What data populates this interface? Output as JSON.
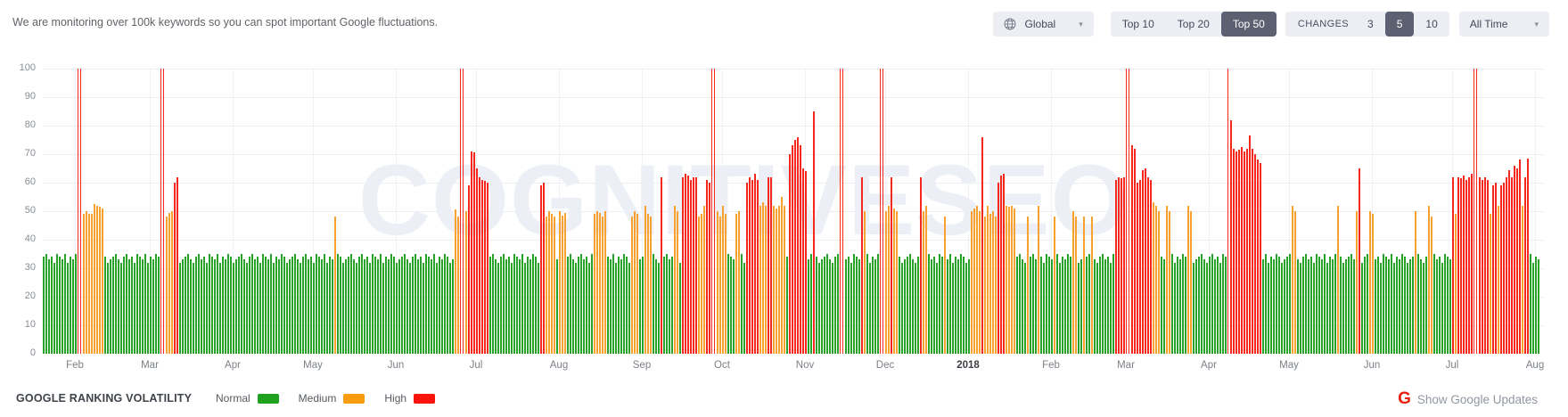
{
  "header": {
    "message": "We are monitoring over 100k keywords so you can spot important Google fluctuations.",
    "region_selector": {
      "icon": "globe-icon",
      "value": "Global"
    },
    "top_filter": {
      "options": [
        "Top 10",
        "Top 20",
        "Top 50"
      ],
      "selected": "Top 50"
    },
    "changes_filter": {
      "label": "CHANGES",
      "options": [
        "3",
        "5",
        "10"
      ],
      "selected": "5"
    },
    "time_selector": {
      "value": "All Time"
    }
  },
  "chart_data": {
    "type": "bar",
    "watermark": "COGNITIVESEO",
    "ylim": [
      0,
      100
    ],
    "yticks": [
      0,
      10,
      20,
      30,
      40,
      50,
      60,
      70,
      80,
      90,
      100
    ],
    "grid": true,
    "legend_position": "bottom",
    "x_axis_months": [
      {
        "label": "Feb",
        "day": 12
      },
      {
        "label": "Mar",
        "day": 40
      },
      {
        "label": "Apr",
        "day": 71
      },
      {
        "label": "May",
        "day": 101
      },
      {
        "label": "Jun",
        "day": 132
      },
      {
        "label": "Jul",
        "day": 162
      },
      {
        "label": "Aug",
        "day": 193
      },
      {
        "label": "Sep",
        "day": 224
      },
      {
        "label": "Oct",
        "day": 254
      },
      {
        "label": "Nov",
        "day": 285
      },
      {
        "label": "Dec",
        "day": 315
      },
      {
        "label": "2018",
        "day": 346,
        "bold": true
      },
      {
        "label": "Feb",
        "day": 377
      },
      {
        "label": "Mar",
        "day": 405
      },
      {
        "label": "Apr",
        "day": 436
      },
      {
        "label": "May",
        "day": 466
      },
      {
        "label": "Jun",
        "day": 497
      },
      {
        "label": "Jul",
        "day": 527
      },
      {
        "label": "Aug",
        "day": 558
      }
    ],
    "colors": {
      "normal": "#28a228",
      "medium": "#f9a12f",
      "high": "#f6281e",
      "spike": "#f6281e"
    },
    "green_base": 33,
    "green_jitter": [
      1,
      2,
      0,
      1,
      -1,
      2,
      1,
      0,
      2,
      -1,
      1,
      0,
      2,
      1,
      -1,
      0,
      1,
      2,
      0,
      -1
    ],
    "segments": [
      [
        "g",
        13
      ],
      [
        "s",
        2
      ],
      [
        "o",
        [
          49,
          50,
          49,
          49,
          52.5,
          52,
          51.5,
          51
        ]
      ],
      [
        "g",
        21
      ],
      [
        "s",
        2
      ],
      [
        "o",
        [
          48,
          49.5,
          50
        ]
      ],
      [
        "r",
        [
          60,
          62
        ]
      ],
      [
        "g",
        58
      ],
      [
        "o",
        [
          48
        ]
      ],
      [
        "g",
        44
      ],
      [
        "o",
        [
          50.5,
          48
        ]
      ],
      [
        "s",
        2
      ],
      [
        "o",
        [
          50
        ]
      ],
      [
        "r",
        [
          59,
          71,
          70.5,
          65,
          62,
          61,
          60.5,
          60
        ]
      ],
      [
        "g",
        19
      ],
      [
        "r",
        [
          59,
          60
        ]
      ],
      [
        "o",
        [
          48,
          50,
          49,
          48
        ]
      ],
      [
        "g",
        1
      ],
      [
        "o",
        [
          50,
          48.5,
          49.5
        ]
      ],
      [
        "g",
        10
      ],
      [
        "o",
        [
          49,
          50,
          49.5,
          48,
          50
        ]
      ],
      [
        "g",
        9
      ],
      [
        "o",
        [
          48,
          50,
          49
        ]
      ],
      [
        "g",
        2
      ],
      [
        "o",
        [
          52,
          49,
          48
        ]
      ],
      [
        "g",
        3
      ],
      [
        "r",
        [
          62
        ]
      ],
      [
        "g",
        4
      ],
      [
        "o",
        [
          52,
          50
        ]
      ],
      [
        "g",
        1
      ],
      [
        "r",
        [
          62,
          63,
          62.5,
          61,
          62,
          62
        ]
      ],
      [
        "o",
        [
          48,
          49
        ]
      ],
      [
        "o",
        [
          52
        ]
      ],
      [
        "r",
        [
          61,
          60
        ]
      ],
      [
        "s",
        2
      ],
      [
        "o",
        [
          50,
          48,
          52,
          49
        ]
      ],
      [
        "g",
        3
      ],
      [
        "o",
        [
          49,
          50
        ]
      ],
      [
        "g",
        2
      ],
      [
        "r",
        [
          60,
          62,
          61,
          63,
          61
        ]
      ],
      [
        "o",
        [
          52,
          53,
          52
        ]
      ],
      [
        "r",
        [
          62,
          62
        ]
      ],
      [
        "o",
        [
          52,
          51,
          52,
          55,
          52
        ]
      ],
      [
        "g",
        1
      ],
      [
        "r",
        [
          70,
          73,
          75,
          76,
          73,
          65,
          64
        ]
      ],
      [
        "g",
        2
      ],
      [
        "r",
        [
          85
        ]
      ],
      [
        "g",
        9
      ],
      [
        "s",
        2
      ],
      [
        "g",
        6
      ],
      [
        "r",
        [
          62
        ]
      ],
      [
        "o",
        [
          50
        ]
      ],
      [
        "g",
        5
      ],
      [
        "s",
        2
      ],
      [
        "o",
        [
          50,
          52
        ]
      ],
      [
        "r",
        [
          62
        ]
      ],
      [
        "o",
        [
          51,
          50
        ]
      ],
      [
        "g",
        8
      ],
      [
        "r",
        [
          62
        ]
      ],
      [
        "o",
        [
          50,
          52
        ]
      ],
      [
        "g",
        6
      ],
      [
        "o",
        [
          48
        ]
      ],
      [
        "g",
        9
      ],
      [
        "o",
        [
          50,
          51,
          52,
          50
        ]
      ],
      [
        "r",
        [
          76
        ]
      ],
      [
        "o",
        [
          48,
          52,
          49,
          50,
          48
        ]
      ],
      [
        "r",
        [
          60,
          62.5,
          63
        ]
      ],
      [
        "o",
        [
          52,
          51.5,
          52,
          51
        ]
      ],
      [
        "g",
        4
      ],
      [
        "o",
        [
          48
        ]
      ],
      [
        "g",
        3
      ],
      [
        "o",
        [
          52
        ]
      ],
      [
        "g",
        5
      ],
      [
        "o",
        [
          48
        ]
      ],
      [
        "g",
        6
      ],
      [
        "o",
        [
          50,
          48
        ]
      ],
      [
        "g",
        2
      ],
      [
        "o",
        [
          48
        ]
      ],
      [
        "g",
        2
      ],
      [
        "o",
        [
          48
        ]
      ],
      [
        "g",
        8
      ],
      [
        "r",
        [
          61,
          62,
          61.5,
          62
        ]
      ],
      [
        "s",
        2
      ],
      [
        "r",
        [
          73,
          72
        ]
      ],
      [
        "r",
        [
          60,
          61,
          64.5,
          65
        ]
      ],
      [
        "r",
        [
          62,
          61
        ]
      ],
      [
        "o",
        [
          53,
          52,
          50
        ]
      ],
      [
        "g",
        2
      ],
      [
        "o",
        [
          52,
          50
        ]
      ],
      [
        "g",
        6
      ],
      [
        "o",
        [
          52,
          50
        ]
      ],
      [
        "g",
        13
      ],
      [
        "s",
        1
      ],
      [
        "r",
        [
          82
        ]
      ],
      [
        "r",
        [
          72,
          71,
          71.5,
          72.5,
          71,
          72,
          76.5,
          72,
          70,
          68,
          67
        ]
      ],
      [
        "g",
        11
      ],
      [
        "o",
        [
          52,
          50
        ]
      ],
      [
        "g",
        15
      ],
      [
        "o",
        [
          52
        ]
      ],
      [
        "g",
        6
      ],
      [
        "o",
        [
          50
        ]
      ],
      [
        "r",
        [
          65
        ]
      ],
      [
        "g",
        3
      ],
      [
        "o",
        [
          50,
          49
        ]
      ],
      [
        "g",
        15
      ],
      [
        "o",
        [
          50
        ]
      ],
      [
        "g",
        4
      ],
      [
        "o",
        [
          52,
          48
        ]
      ],
      [
        "g",
        7
      ],
      [
        "r",
        [
          62
        ]
      ],
      [
        "o",
        [
          49
        ]
      ],
      [
        "r",
        [
          62,
          61.5,
          62.5,
          61,
          62,
          63
        ]
      ],
      [
        "s",
        2
      ],
      [
        "r",
        [
          62,
          61,
          62
        ]
      ],
      [
        "r",
        [
          61
        ]
      ],
      [
        "o",
        [
          49
        ]
      ],
      [
        "r",
        [
          59,
          60
        ]
      ],
      [
        "o",
        [
          52
        ]
      ],
      [
        "r",
        [
          59,
          60,
          62,
          64.5
        ]
      ],
      [
        "r",
        [
          62,
          66,
          65
        ]
      ],
      [
        "r",
        [
          68
        ]
      ],
      [
        "o",
        [
          52
        ]
      ],
      [
        "r",
        [
          62,
          68.5
        ]
      ],
      [
        "g",
        4
      ]
    ]
  },
  "footer": {
    "title": "GOOGLE RANKING VOLATILITY",
    "legend": [
      {
        "label": "Normal",
        "level": "normal",
        "color": "#1fa31f"
      },
      {
        "label": "Medium",
        "level": "medium",
        "color": "#f99c10"
      },
      {
        "label": "High",
        "level": "high",
        "color": "#f8140a"
      }
    ],
    "google_updates": {
      "icon_letter": "G",
      "label": "Show Google Updates"
    }
  }
}
